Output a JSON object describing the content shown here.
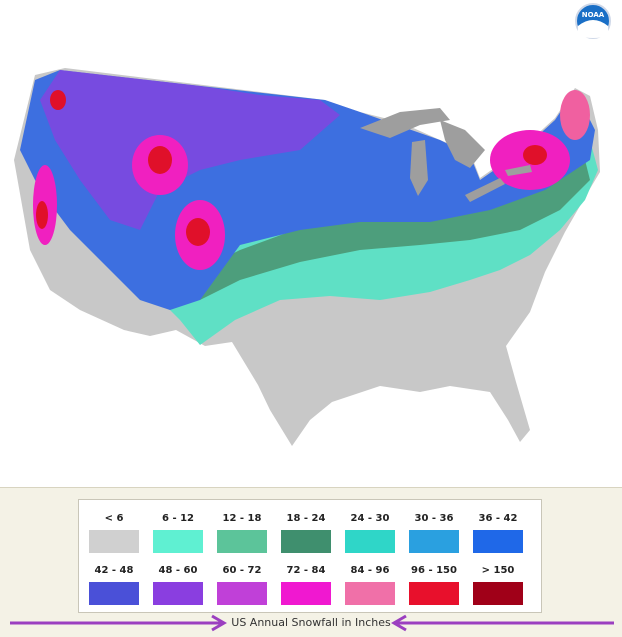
{
  "logo": "NOAA",
  "legend": {
    "items": [
      {
        "label": "< 6",
        "color": "#d0d0d0"
      },
      {
        "label": "6 - 12",
        "color": "#5ff0d2"
      },
      {
        "label": "12 - 18",
        "color": "#5cc49a"
      },
      {
        "label": "18 - 24",
        "color": "#3f8f6e"
      },
      {
        "label": "24 - 30",
        "color": "#2fd6c8"
      },
      {
        "label": "30 - 36",
        "color": "#2aa0e0"
      },
      {
        "label": "36 - 42",
        "color": "#1f68e8"
      },
      {
        "label": "42 - 48",
        "color": "#4a50d8"
      },
      {
        "label": "48 - 60",
        "color": "#8a3ee0"
      },
      {
        "label": "60 - 72",
        "color": "#c040d8"
      },
      {
        "label": "72 - 84",
        "color": "#f018d0"
      },
      {
        "label": "84 - 96",
        "color": "#f070a8"
      },
      {
        "label": "96 - 150",
        "color": "#e8102c"
      },
      {
        "label": "> 150",
        "color": "#a00018"
      }
    ]
  },
  "caption": "US Annual Snowfall in Inches"
}
